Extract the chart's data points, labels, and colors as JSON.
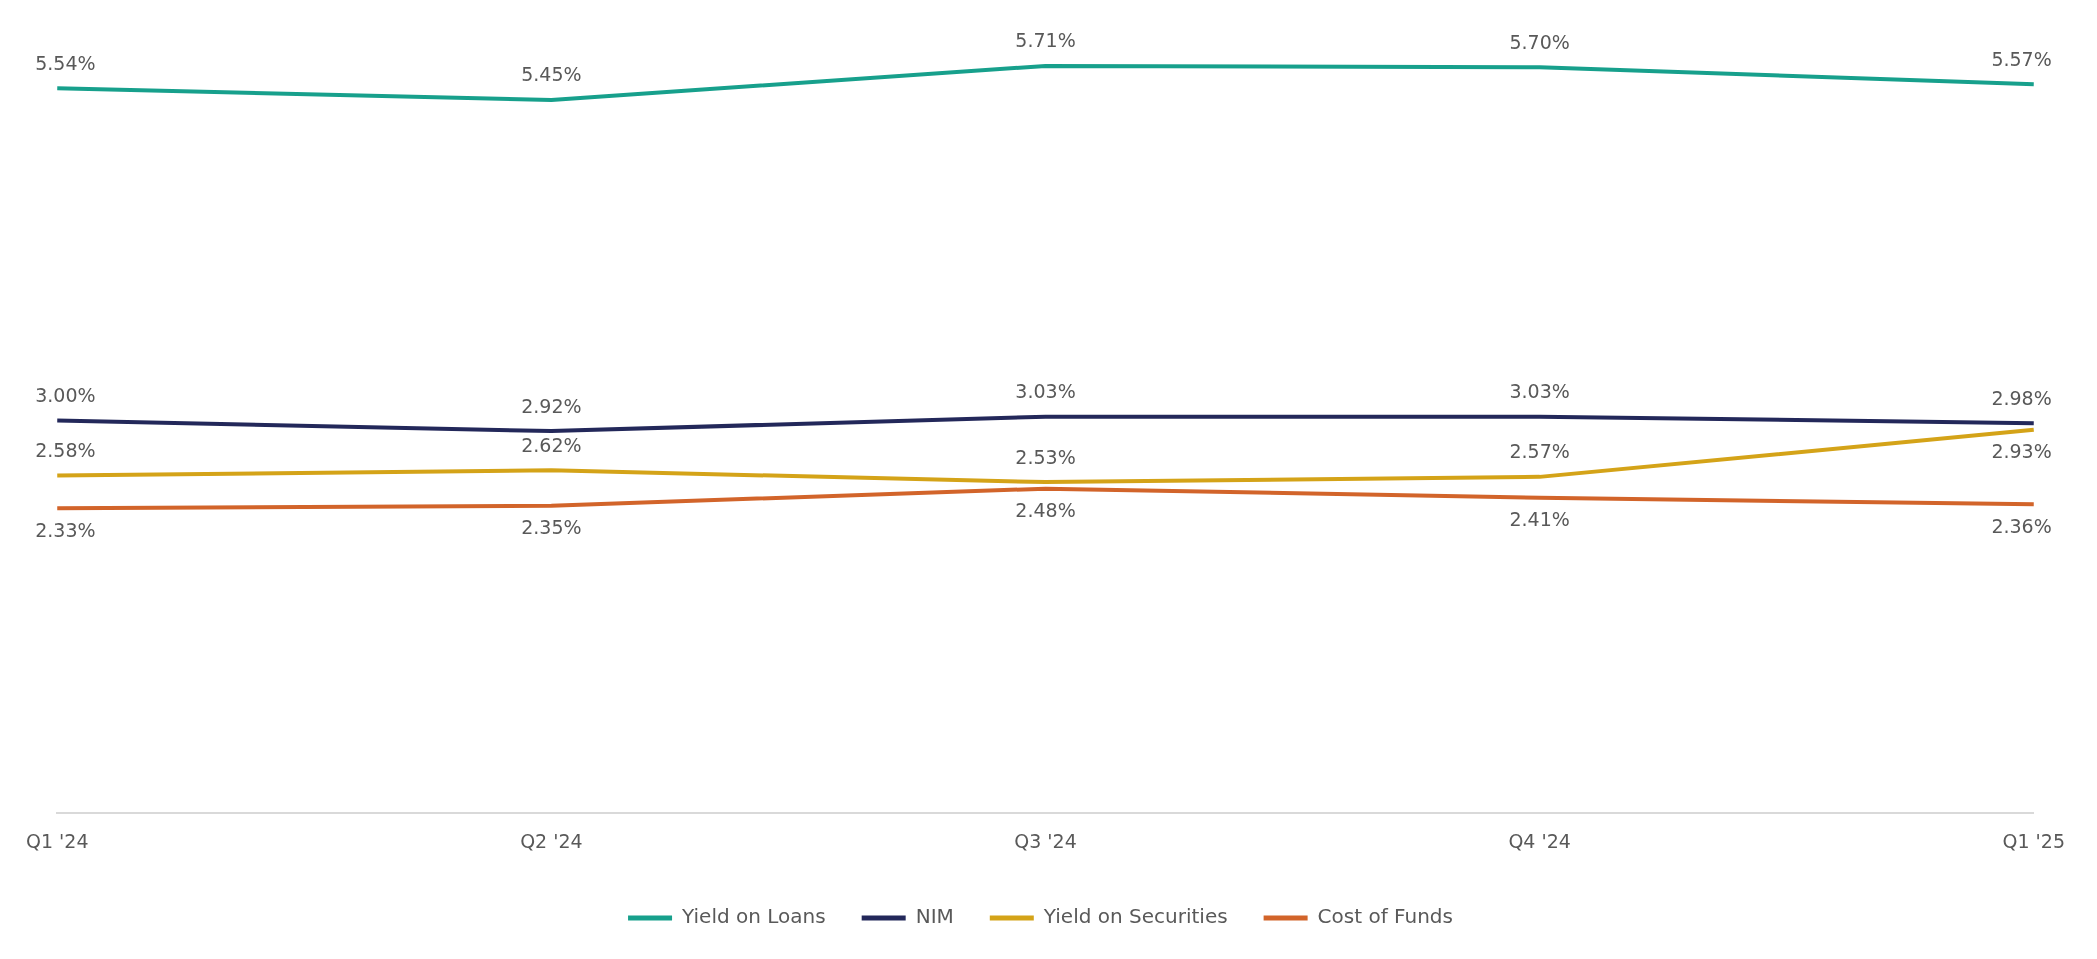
{
  "chart_data": {
    "type": "line",
    "categories": [
      "Q1 '24",
      "Q2 '24",
      "Q3 '24",
      "Q4 '24",
      "Q1 '25"
    ],
    "series": [
      {
        "name": "Yield on Loans",
        "color": "#17a08c",
        "values": [
          5.54,
          5.45,
          5.71,
          5.7,
          5.57
        ],
        "value_labels": [
          "5.54%",
          "5.45%",
          "5.71%",
          "5.70%",
          "5.57%"
        ]
      },
      {
        "name": "NIM",
        "color": "#23285a",
        "values": [
          3.0,
          2.92,
          3.03,
          3.03,
          2.98
        ],
        "value_labels": [
          "3.00%",
          "2.92%",
          "3.03%",
          "3.03%",
          "2.98%"
        ]
      },
      {
        "name": "Yield on Securities",
        "color": "#d4a318",
        "values": [
          2.58,
          2.62,
          2.53,
          2.57,
          2.93
        ],
        "value_labels": [
          "2.58%",
          "2.62%",
          "2.53%",
          "2.57%",
          "2.93%"
        ]
      },
      {
        "name": "Cost of Funds",
        "color": "#d2642a",
        "values": [
          2.33,
          2.35,
          2.48,
          2.41,
          2.36
        ],
        "value_labels": [
          "2.33%",
          "2.35%",
          "2.48%",
          "2.41%",
          "2.36%"
        ]
      }
    ],
    "grid": false,
    "legend": "bottom",
    "marker": "none",
    "line_style": "solid"
  }
}
